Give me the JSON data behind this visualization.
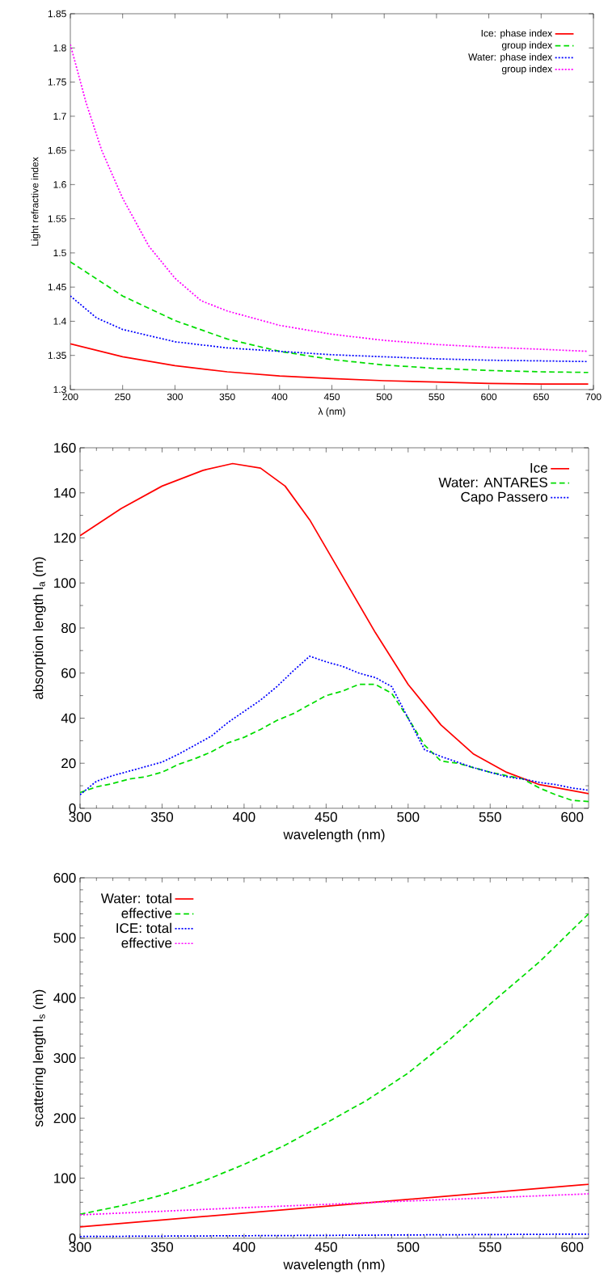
{
  "chart_data": [
    {
      "type": "line",
      "xlabel": "λ (nm)",
      "ylabel": "Light refractive index",
      "xlim": [
        200,
        700
      ],
      "ylim": [
        1.3,
        1.85
      ],
      "xticks": [
        200,
        250,
        300,
        350,
        400,
        450,
        500,
        550,
        600,
        650,
        700
      ],
      "yticks": [
        1.3,
        1.35,
        1.4,
        1.45,
        1.5,
        1.55,
        1.6,
        1.65,
        1.7,
        1.75,
        1.8,
        1.85
      ],
      "legend": "top right",
      "series": [
        {
          "name": "Ice: phase index",
          "color": "#ff0000",
          "line_style": "solid",
          "x": [
            200,
            250,
            300,
            350,
            400,
            450,
            500,
            550,
            600,
            650,
            695
          ],
          "values": [
            1.367,
            1.348,
            1.335,
            1.326,
            1.32,
            1.316,
            1.313,
            1.311,
            1.309,
            1.308,
            1.308
          ]
        },
        {
          "name": "group index",
          "color": "#00dd00",
          "line_style": "dashed",
          "x": [
            200,
            250,
            300,
            350,
            400,
            450,
            500,
            550,
            600,
            650,
            695
          ],
          "values": [
            1.487,
            1.437,
            1.401,
            1.374,
            1.356,
            1.344,
            1.336,
            1.331,
            1.328,
            1.326,
            1.325
          ]
        },
        {
          "name": "Water: phase index",
          "color": "#0000ff",
          "line_style": "dotted",
          "x": [
            200,
            225,
            250,
            300,
            350,
            400,
            450,
            500,
            550,
            600,
            650,
            695
          ],
          "values": [
            1.437,
            1.405,
            1.388,
            1.37,
            1.361,
            1.356,
            1.351,
            1.348,
            1.345,
            1.343,
            1.342,
            1.341
          ]
        },
        {
          "name": "group index",
          "color": "#ff00ff",
          "line_style": "dotted",
          "x": [
            200,
            215,
            230,
            250,
            275,
            300,
            325,
            350,
            400,
            450,
            500,
            550,
            600,
            650,
            695
          ],
          "values": [
            1.805,
            1.72,
            1.65,
            1.58,
            1.51,
            1.463,
            1.43,
            1.415,
            1.394,
            1.381,
            1.372,
            1.366,
            1.362,
            1.359,
            1.356
          ]
        }
      ]
    },
    {
      "type": "line",
      "xlabel": "wavelength (nm)",
      "ylabel": "absorption length l$_{a}$ (m)",
      "xlim": [
        300,
        610
      ],
      "ylim": [
        0,
        160
      ],
      "xticks": [
        300,
        350,
        400,
        450,
        500,
        550,
        600
      ],
      "yticks": [
        0,
        20,
        40,
        60,
        80,
        100,
        120,
        140,
        160
      ],
      "legend": "top right",
      "series": [
        {
          "name": "Ice",
          "color": "#ff0000",
          "line_style": "solid",
          "x": [
            300,
            325,
            350,
            375,
            393,
            410,
            425,
            440,
            460,
            480,
            500,
            520,
            540,
            560,
            580,
            610
          ],
          "values": [
            121,
            133,
            143,
            150,
            153,
            151,
            143,
            128,
            103,
            78,
            55,
            37,
            24,
            16,
            10.5,
            6.5
          ]
        },
        {
          "name": "Water: ANTARES",
          "color": "#00dd00",
          "line_style": "dashed",
          "x": [
            300,
            310,
            320,
            330,
            340,
            350,
            360,
            370,
            380,
            390,
            400,
            410,
            420,
            430,
            440,
            450,
            460,
            470,
            480,
            490,
            500,
            510,
            520,
            530,
            540,
            550,
            560,
            570,
            580,
            590,
            600,
            610
          ],
          "values": [
            7,
            9.5,
            11,
            13,
            14,
            16,
            19.5,
            22,
            25,
            29,
            31.5,
            35,
            39,
            42,
            46,
            50,
            52,
            55,
            55,
            51,
            40,
            28,
            21,
            20,
            18,
            16,
            14.5,
            13,
            9,
            6,
            3.5,
            3
          ]
        },
        {
          "name": "Capo Passero",
          "color": "#0000ff",
          "line_style": "dotted",
          "x": [
            300,
            310,
            320,
            330,
            340,
            350,
            360,
            370,
            380,
            390,
            400,
            410,
            420,
            430,
            440,
            450,
            460,
            470,
            480,
            490,
            500,
            510,
            520,
            530,
            540,
            550,
            560,
            570,
            580,
            590,
            600,
            610
          ],
          "values": [
            6,
            12,
            14.5,
            16.5,
            18.5,
            20.5,
            24,
            28,
            32,
            38,
            43,
            48,
            54,
            61,
            67.5,
            65,
            63,
            60,
            58,
            54,
            40,
            26,
            23,
            20.5,
            18,
            16,
            14,
            13,
            11.5,
            10.5,
            9,
            8
          ]
        }
      ]
    },
    {
      "type": "line",
      "xlabel": "wavelength (nm)",
      "ylabel": "scattering length l$_{s}$ (m)",
      "xlim": [
        300,
        610
      ],
      "ylim": [
        0,
        600
      ],
      "xticks": [
        300,
        350,
        400,
        450,
        500,
        550,
        600
      ],
      "yticks": [
        0,
        100,
        200,
        300,
        400,
        500,
        600
      ],
      "legend": "top left",
      "series": [
        {
          "name": "Water: total",
          "color": "#ff0000",
          "line_style": "solid",
          "x": [
            300,
            610
          ],
          "values": [
            19,
            90
          ]
        },
        {
          "name": "effective",
          "color": "#00dd00",
          "line_style": "dashed",
          "x": [
            300,
            325,
            350,
            375,
            400,
            425,
            450,
            475,
            500,
            525,
            550,
            580,
            610
          ],
          "values": [
            40,
            54,
            72,
            95,
            123,
            155,
            192,
            230,
            275,
            330,
            390,
            460,
            540
          ]
        },
        {
          "name": "ICE: total",
          "color": "#0000ff",
          "line_style": "dotted",
          "x": [
            300,
            610
          ],
          "values": [
            3,
            7
          ]
        },
        {
          "name": "effective",
          "color": "#ff00ff",
          "line_style": "dotted",
          "x": [
            300,
            400,
            500,
            610
          ],
          "values": [
            39,
            51,
            62,
            74
          ]
        }
      ]
    }
  ]
}
